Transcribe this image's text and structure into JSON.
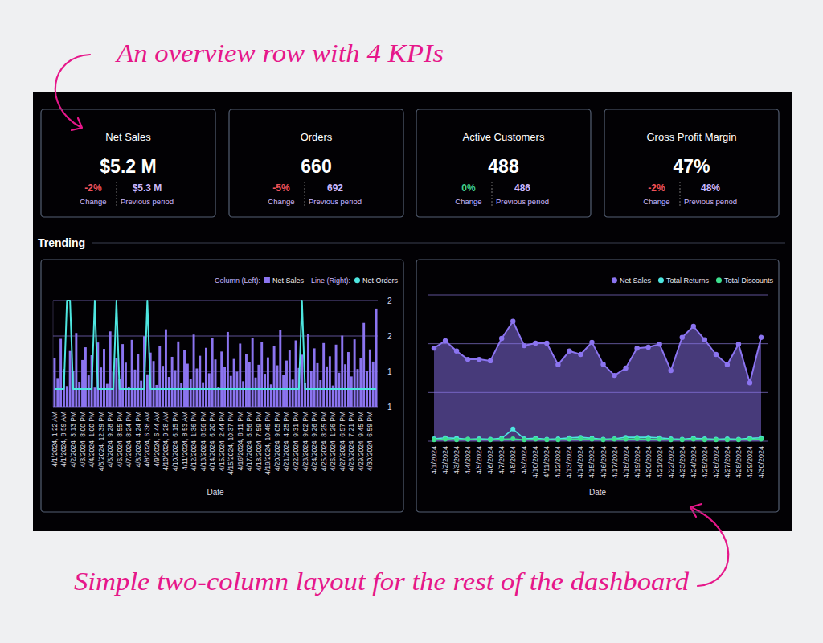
{
  "annotations": {
    "top": "An overview row with 4 KPIs",
    "bottom": "Simple two-column layout for the rest of the dashboard"
  },
  "kpis": [
    {
      "title": "Net Sales",
      "value": "$5.2 M",
      "change": "-2%",
      "change_label": "Change",
      "previous": "$5.3 M",
      "previous_label": "Previous period"
    },
    {
      "title": "Orders",
      "value": "660",
      "change": "-5%",
      "change_label": "Change",
      "previous": "692",
      "previous_label": "Previous period"
    },
    {
      "title": "Active Customers",
      "value": "488",
      "change": "0%",
      "change_label": "Change",
      "previous": "486",
      "previous_label": "Previous period"
    },
    {
      "title": "Gross Profit Margin",
      "value": "47%",
      "change": "-2%",
      "change_label": "Change",
      "previous": "48%",
      "previous_label": "Previous period"
    }
  ],
  "section_title": "Trending",
  "chart_data": [
    {
      "type": "bar",
      "x_label": "Date",
      "grid": true,
      "legend": "top-right",
      "categories": [
        "4/1/2024, 1:22 AM",
        null,
        null,
        "4/1/2024, 8:59 AM",
        null,
        null,
        "4/2/2024, 3:13 PM",
        null,
        null,
        "4/3/2024, 8:00 PM",
        null,
        null,
        "4/4/2024, 1:00 PM",
        null,
        null,
        "4/5/2024, 12:39 PM",
        null,
        null,
        "4/5/2024, 9:28 PM",
        null,
        null,
        "4/6/2024, 8:55 PM",
        null,
        null,
        "4/7/2024, 8:24 PM",
        null,
        null,
        "4/8/2024, 4:24 PM",
        null,
        null,
        "4/8/2024, 6:38 AM",
        null,
        null,
        "4/9/2024, 6:44 AM",
        null,
        null,
        "4/10/2024, 9:28 AM",
        null,
        null,
        "4/10/2024, 6:15 PM",
        null,
        null,
        "4/11/2024, 8:53 AM",
        null,
        null,
        "4/12/2024, 1:36 PM",
        null,
        null,
        "4/13/2024, 8:56 PM",
        null,
        null,
        "4/14/2024, 6:20 PM",
        null,
        null,
        "4/15/2024, 2:44 PM",
        null,
        null,
        "4/15/2024, 10:37 PM",
        null,
        null,
        "4/16/2024, 8:11 PM",
        null,
        null,
        "4/17/2024, 5:56 PM",
        null,
        null,
        "4/18/2024, 7:59 PM",
        null,
        null,
        "4/19/2024, 10:46 PM",
        null,
        null,
        "4/20/2024, 9:05 PM",
        null,
        null,
        "4/21/2024, 4:25 PM",
        null,
        null,
        "4/22/2024, 9:31 PM",
        null,
        null,
        "4/23/2024, 9:02 PM",
        null,
        null,
        "4/24/2024, 9:26 PM",
        null,
        null,
        "4/25/2024, 8:25 PM",
        null,
        null,
        "4/26/2024, 1:26 PM",
        null,
        null,
        "4/27/2024, 6:57 PM",
        null,
        null,
        "4/28/2024, 7:21 PM",
        null,
        null,
        "4/29/2024, 9:45 PM",
        null,
        null,
        "4/30/2024, 6:59 PM",
        null,
        null
      ],
      "ylim": [
        0,
        20000
      ],
      "y2lim": [
        0.8,
        2
      ],
      "y2ticks": [
        {
          "value": 0.8,
          "label": "1"
        },
        {
          "value": 1.2,
          "label": "1"
        },
        {
          "value": 1.6,
          "label": "2"
        },
        2
      ],
      "series": [
        {
          "name": "Net Sales",
          "type": "bar",
          "color": "#8b74f0",
          "group_label": "Column (Left):",
          "values": [
            9200,
            5400,
            12800,
            7100,
            3900,
            10500,
            6800,
            13900,
            4700,
            8800,
            11200,
            5900,
            9700,
            3600,
            12100,
            7400,
            10900,
            4300,
            14200,
            6500,
            9100,
            5200,
            11800,
            8300,
            3800,
            12600,
            7000,
            9900,
            4900,
            13300,
            6100,
            10200,
            8600,
            4100,
            11500,
            7700,
            14600,
            5600,
            9400,
            6900,
            12300,
            4400,
            10700,
            8100,
            5300,
            13600,
            7200,
            9600,
            4600,
            11100,
            6300,
            12900,
            8900,
            3700,
            10400,
            7500,
            14100,
            5800,
            9000,
            6600,
            11900,
            4800,
            10000,
            8400,
            13000,
            5500,
            7900,
            12200,
            6200,
            9300,
            4200,
            11400,
            7800,
            14400,
            6000,
            8700,
            10600,
            5100,
            12500,
            7300,
            9800,
            4500,
            13700,
            6700,
            11000,
            8200,
            5000,
            12000,
            7600,
            9500,
            4000,
            11700,
            6400,
            13400,
            8000,
            10300,
            5700,
            12700,
            7100,
            9200,
            15800,
            6800,
            10800,
            8500,
            18500
          ]
        },
        {
          "name": "Net Orders",
          "type": "line",
          "axis": "y2",
          "color": "#4ee6e0",
          "marker": "none",
          "group_label": "Line (Right):",
          "values": [
            1,
            1,
            1,
            1,
            2,
            2,
            1,
            1,
            1,
            1,
            1,
            1,
            1,
            2,
            1,
            1,
            1,
            1,
            1,
            1,
            2,
            1,
            1,
            1,
            1,
            1,
            1,
            1,
            1,
            1,
            2,
            1,
            1,
            1,
            1,
            1,
            1,
            1,
            1,
            1,
            1,
            1,
            1,
            1,
            1,
            1,
            1,
            1,
            1,
            1,
            1,
            1,
            1,
            1,
            1,
            1,
            1,
            1,
            1,
            1,
            1,
            1,
            1,
            1,
            1,
            1,
            1,
            1,
            1,
            1,
            1,
            1,
            1,
            1,
            1,
            1,
            1,
            1,
            1,
            1,
            2,
            1,
            1,
            1,
            1,
            1,
            1,
            1,
            1,
            1,
            1,
            1,
            1,
            1,
            1,
            1,
            1,
            1,
            1,
            1,
            1,
            1,
            1,
            1,
            1
          ]
        }
      ]
    },
    {
      "type": "area",
      "x_label": "Date",
      "grid": true,
      "legend": "top-right",
      "tick_labels": "x",
      "categories": [
        "4/1/2024",
        "4/2/2024",
        "4/3/2024",
        "4/4/2024",
        "4/5/2024",
        "4/6/2024",
        "4/7/2024",
        "4/8/2024",
        "4/9/2024",
        "4/10/2024",
        "4/11/2024",
        "4/12/2024",
        "4/13/2024",
        "4/14/2024",
        "4/15/2024",
        "4/16/2024",
        "4/17/2024",
        "4/18/2024",
        "4/19/2024",
        "4/20/2024",
        "4/21/2024",
        "4/22/2024",
        "4/23/2024",
        "4/24/2024",
        "4/25/2024",
        "4/26/2024",
        "4/27/2024",
        "4/28/2024",
        "4/29/2024",
        "4/30/2024"
      ],
      "ylim": [
        0,
        300000
      ],
      "yticks": [
        0,
        100000,
        200000,
        300000
      ],
      "series": [
        {
          "name": "Net Sales",
          "type": "area",
          "color": "#8b74f0",
          "marker": "circle",
          "values": [
            191000,
            206000,
            185000,
            168000,
            168000,
            165000,
            211000,
            246000,
            196000,
            201000,
            201000,
            157000,
            185000,
            178000,
            203000,
            158000,
            135000,
            150000,
            191000,
            193000,
            199000,
            145000,
            213000,
            236000,
            208000,
            178000,
            157000,
            199000,
            120000,
            213000
          ]
        },
        {
          "name": "Total Returns",
          "type": "line",
          "color": "#4ee6e0",
          "marker": "circle",
          "values": [
            5000,
            7000,
            6000,
            4000,
            5000,
            4000,
            6000,
            25000,
            5000,
            6000,
            4000,
            5000,
            7000,
            8000,
            6000,
            4000,
            5000,
            8000,
            8000,
            8000,
            7000,
            5000,
            4000,
            6000,
            5000,
            4000,
            5000,
            4000,
            6000,
            7000
          ]
        },
        {
          "name": "Total Discounts",
          "type": "line",
          "color": "#3ee08f",
          "marker": "circle",
          "values": [
            3000,
            4000,
            3000,
            4000,
            3000,
            3000,
            4000,
            5000,
            3000,
            4000,
            3000,
            3000,
            4000,
            5000,
            4000,
            3000,
            4000,
            4000,
            5000,
            4000,
            4000,
            3000,
            3000,
            4000,
            3000,
            3000,
            3000,
            3000,
            4000,
            4000
          ]
        }
      ]
    }
  ]
}
